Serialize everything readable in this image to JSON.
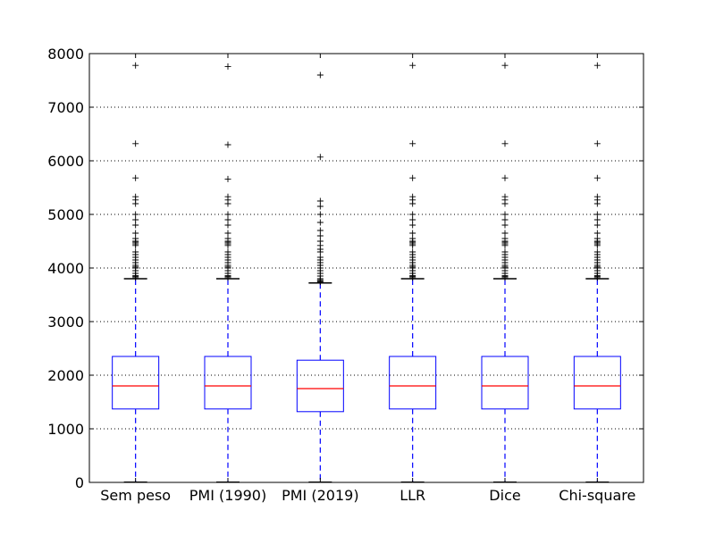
{
  "chart_data": {
    "type": "box",
    "title": "",
    "xlabel": "",
    "ylabel": "",
    "ylim": [
      0,
      8000
    ],
    "yticks": [
      0,
      1000,
      2000,
      3000,
      4000,
      5000,
      6000,
      7000,
      8000
    ],
    "grid": {
      "y": true,
      "x": false,
      "style": "dotted"
    },
    "colors": {
      "box": "#0000ff",
      "median": "#ff0000",
      "whisker": "#0000ff",
      "cap": "#000000",
      "flier": "#000000"
    },
    "categories": [
      "Sem peso",
      "PMI (1990)",
      "PMI (2019)",
      "LLR",
      "Dice",
      "Chi-square"
    ],
    "series": [
      {
        "category": "Sem peso",
        "whislo": 5,
        "q1": 1370,
        "median": 1800,
        "q3": 2350,
        "whishi": 3800,
        "fliers": [
          3820,
          3840,
          3860,
          3900,
          3950,
          4000,
          4020,
          4050,
          4100,
          4150,
          4200,
          4250,
          4300,
          4420,
          4450,
          4480,
          4500,
          4550,
          4650,
          4800,
          4900,
          5000,
          5200,
          5270,
          5330,
          5680,
          6320,
          7780
        ]
      },
      {
        "category": "PMI (1990)",
        "whislo": 5,
        "q1": 1370,
        "median": 1800,
        "q3": 2350,
        "whishi": 3800,
        "fliers": [
          3820,
          3840,
          3860,
          3900,
          3950,
          4000,
          4020,
          4050,
          4100,
          4150,
          4200,
          4250,
          4300,
          4420,
          4450,
          4480,
          4500,
          4550,
          4650,
          4800,
          4900,
          5000,
          5200,
          5270,
          5330,
          5660,
          6300,
          7760
        ]
      },
      {
        "category": "PMI (2019)",
        "whislo": 5,
        "q1": 1320,
        "median": 1750,
        "q3": 2280,
        "whishi": 3720,
        "fliers": [
          3740,
          3760,
          3780,
          3800,
          3850,
          3900,
          3950,
          4000,
          4050,
          4100,
          4150,
          4200,
          4300,
          4350,
          4420,
          4500,
          4600,
          4700,
          4850,
          5000,
          5150,
          5250,
          6070,
          7600
        ]
      },
      {
        "category": "LLR",
        "whislo": 5,
        "q1": 1370,
        "median": 1800,
        "q3": 2350,
        "whishi": 3800,
        "fliers": [
          3820,
          3840,
          3860,
          3900,
          3950,
          4000,
          4020,
          4050,
          4100,
          4150,
          4200,
          4250,
          4300,
          4420,
          4450,
          4480,
          4500,
          4550,
          4650,
          4800,
          4900,
          5000,
          5200,
          5270,
          5330,
          5680,
          6320,
          7780
        ]
      },
      {
        "category": "Dice",
        "whislo": 5,
        "q1": 1370,
        "median": 1800,
        "q3": 2350,
        "whishi": 3800,
        "fliers": [
          3820,
          3840,
          3860,
          3900,
          3950,
          4000,
          4020,
          4050,
          4100,
          4150,
          4200,
          4250,
          4300,
          4420,
          4450,
          4480,
          4500,
          4550,
          4650,
          4800,
          4900,
          5000,
          5200,
          5270,
          5330,
          5680,
          6320,
          7780
        ]
      },
      {
        "category": "Chi-square",
        "whislo": 5,
        "q1": 1370,
        "median": 1800,
        "q3": 2350,
        "whishi": 3800,
        "fliers": [
          3820,
          3840,
          3860,
          3900,
          3950,
          4000,
          4020,
          4050,
          4100,
          4150,
          4200,
          4250,
          4300,
          4420,
          4450,
          4480,
          4500,
          4550,
          4650,
          4800,
          4900,
          5000,
          5200,
          5270,
          5330,
          5680,
          6320,
          7780
        ]
      }
    ]
  }
}
